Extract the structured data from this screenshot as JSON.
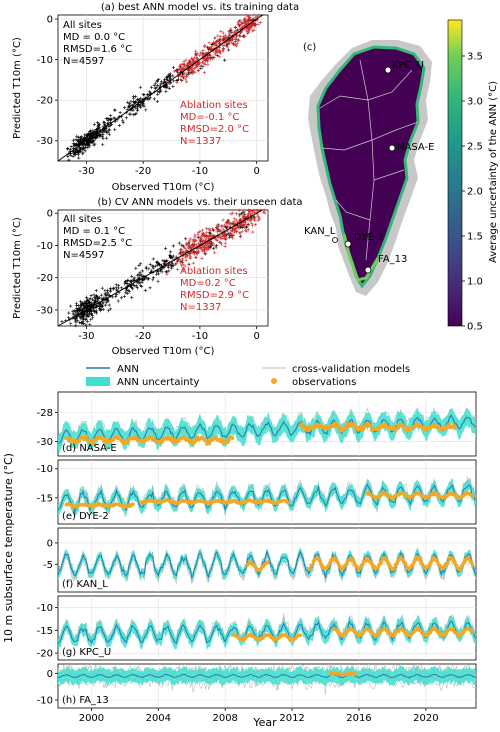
{
  "colors": {
    "ann": "#2a78b4",
    "ann_uncertainty": "#40e0d0",
    "cv_models": "#bdbdbd",
    "observations": "#f5a623",
    "all_sites_pts": "#000000",
    "ablation_pts": "#d62728",
    "ablation_text": "#d62728"
  },
  "chart_data": [
    {
      "id": "a",
      "type": "scatter",
      "title": "(a) best ANN model vs. its training data",
      "xlabel": "Observed T10m (°C)",
      "ylabel": "Predicted T10m (°C)",
      "xlim": [
        -35,
        2
      ],
      "ylim": [
        -35,
        1
      ],
      "xticks": [
        -30,
        -20,
        -10,
        0
      ],
      "yticks": [
        -30,
        -20,
        -10,
        0
      ],
      "grid": true,
      "one_to_one_line": true,
      "stats_all": [
        "All sites",
        "MD = 0.0 °C",
        "RMSD=1.6 °C",
        "N=4597"
      ],
      "stats_ablation": [
        "Ablation sites",
        "MD=-0.1 °C",
        "RMSD=2.0 °C",
        "N=1337"
      ],
      "series": [
        {
          "name": "All sites",
          "spread": 1.6,
          "clusters": [
            [
              -31,
              8
            ],
            [
              -29.5,
              6
            ],
            [
              -28,
              4
            ],
            [
              -26,
              3
            ],
            [
              -22,
              3
            ],
            [
              -20,
              3
            ],
            [
              -17,
              3
            ],
            [
              -15,
              2
            ],
            [
              -12,
              2
            ],
            [
              -8,
              2
            ],
            [
              -5,
              2
            ],
            [
              -2,
              2
            ]
          ]
        },
        {
          "name": "Ablation sites",
          "spread": 2.0,
          "clusters": [
            [
              -13,
              3
            ],
            [
              -11,
              4
            ],
            [
              -9,
              4
            ],
            [
              -7,
              3
            ],
            [
              -5,
              3
            ],
            [
              -3,
              3
            ],
            [
              -1,
              3
            ],
            [
              -0.5,
              2
            ]
          ]
        }
      ]
    },
    {
      "id": "b",
      "type": "scatter",
      "title": "(b) CV ANN models vs. their unseen data",
      "xlabel": "Observed T10m (°C)",
      "ylabel": "Predicted T10m (°C)",
      "xlim": [
        -35,
        2
      ],
      "ylim": [
        -35,
        1
      ],
      "xticks": [
        -30,
        -20,
        -10,
        0
      ],
      "yticks": [
        -30,
        -20,
        -10,
        0
      ],
      "grid": true,
      "one_to_one_line": true,
      "stats_all": [
        "All sites",
        "MD = 0.1 °C",
        "RMSD=2.5 °C",
        "N=4597"
      ],
      "stats_ablation": [
        "Ablation sites",
        "MD=0.2 °C",
        "RMSD=2.9 °C",
        "N=1337"
      ],
      "series": [
        {
          "name": "All sites",
          "spread": 2.5,
          "clusters": [
            [
              -31,
              8
            ],
            [
              -29.5,
              6
            ],
            [
              -28,
              4
            ],
            [
              -26,
              3
            ],
            [
              -22,
              3
            ],
            [
              -20,
              3
            ],
            [
              -17,
              3
            ],
            [
              -15,
              2
            ],
            [
              -12,
              2
            ],
            [
              -8,
              2
            ],
            [
              -5,
              2
            ],
            [
              -2,
              2
            ]
          ]
        },
        {
          "name": "Ablation sites",
          "spread": 2.9,
          "clusters": [
            [
              -13,
              3
            ],
            [
              -11,
              4
            ],
            [
              -9,
              4
            ],
            [
              -7,
              3
            ],
            [
              -5,
              3
            ],
            [
              -3,
              3
            ],
            [
              -1,
              3
            ],
            [
              -0.5,
              2
            ]
          ]
        }
      ]
    },
    {
      "id": "c",
      "type": "map",
      "label": "(c)",
      "colorbar_label": "Average uncertainty of the ANN (°C)",
      "colorbar_range": [
        0.5,
        3.9
      ],
      "colorbar_ticks": [
        0.5,
        1.0,
        1.5,
        2.0,
        2.5,
        3.0,
        3.5
      ],
      "sites": [
        {
          "name": "KPC_U"
        },
        {
          "name": "NASA-E"
        },
        {
          "name": "DYE-2"
        },
        {
          "name": "KAN_L"
        },
        {
          "name": "FA_13"
        }
      ]
    },
    {
      "id": "timeseries",
      "type": "line",
      "ylabel": "10 m subsurface temperature (°C)",
      "xlabel": "Year",
      "xlim": [
        1998,
        2023
      ],
      "xticks": [
        2000,
        2004,
        2008,
        2012,
        2016,
        2020
      ],
      "legend": [
        "ANN",
        "ANN uncertainty",
        "cross-validation models",
        "observations"
      ],
      "panels": [
        {
          "label": "(d) NASA-E",
          "ylim": [
            -31,
            -26.6
          ],
          "yticks": [
            -30,
            -28
          ],
          "mean": -29.2,
          "amp": 0.4,
          "trend": 0.04,
          "unc": 0.6,
          "cv_spread": 0.5,
          "obs": [
            [
              1998.5,
              2008.5,
              -29.9,
              0.25
            ],
            [
              2012.5,
              2021.8,
              -29.0,
              0.25
            ]
          ]
        },
        {
          "label": "(e) DYE-2",
          "ylim": [
            -19.5,
            -8.5
          ],
          "yticks": [
            -15,
            -10
          ],
          "mean": -15.0,
          "amp": 1.3,
          "trend": 0.06,
          "unc": 1.0,
          "cv_spread": 1.2,
          "obs": [
            [
              1998.5,
              2002.5,
              -16.3,
              0.3
            ],
            [
              2003,
              2011.8,
              -15.7,
              0.3
            ],
            [
              2016.5,
              2022.8,
              -14.6,
              0.6
            ]
          ]
        },
        {
          "label": "(f) KAN_L",
          "ylim": [
            -11.5,
            3.5
          ],
          "yticks": [
            -5,
            0
          ],
          "mean": -5.0,
          "amp": 2.2,
          "trend": 0.02,
          "unc": 1.0,
          "cv_spread": 1.3,
          "obs": [
            [
              2009.3,
              2010.6,
              -5.5,
              1.5
            ],
            [
              2013,
              2022.8,
              -4.8,
              2.0
            ]
          ]
        },
        {
          "label": "(g) KPC_U",
          "ylim": [
            -21.5,
            -7.5
          ],
          "yticks": [
            -20,
            -15,
            -10
          ],
          "mean": -15.5,
          "amp": 1.6,
          "trend": 0.05,
          "unc": 1.3,
          "cv_spread": 1.5,
          "obs": [
            [
              2008.5,
              2012.5,
              -16.5,
              0.8
            ],
            [
              2014.5,
              2022.8,
              -15.4,
              1.2
            ]
          ]
        },
        {
          "label": "(h) FA_13",
          "ylim": [
            -13,
            3.5
          ],
          "yticks": [
            -10,
            0
          ],
          "mean": -1.0,
          "amp": 0.5,
          "trend": 0.0,
          "unc": 2.6,
          "cv_spread": 5.0,
          "obs": [
            [
              2014.3,
              2015.9,
              -0.3,
              0.3
            ]
          ]
        }
      ]
    }
  ]
}
